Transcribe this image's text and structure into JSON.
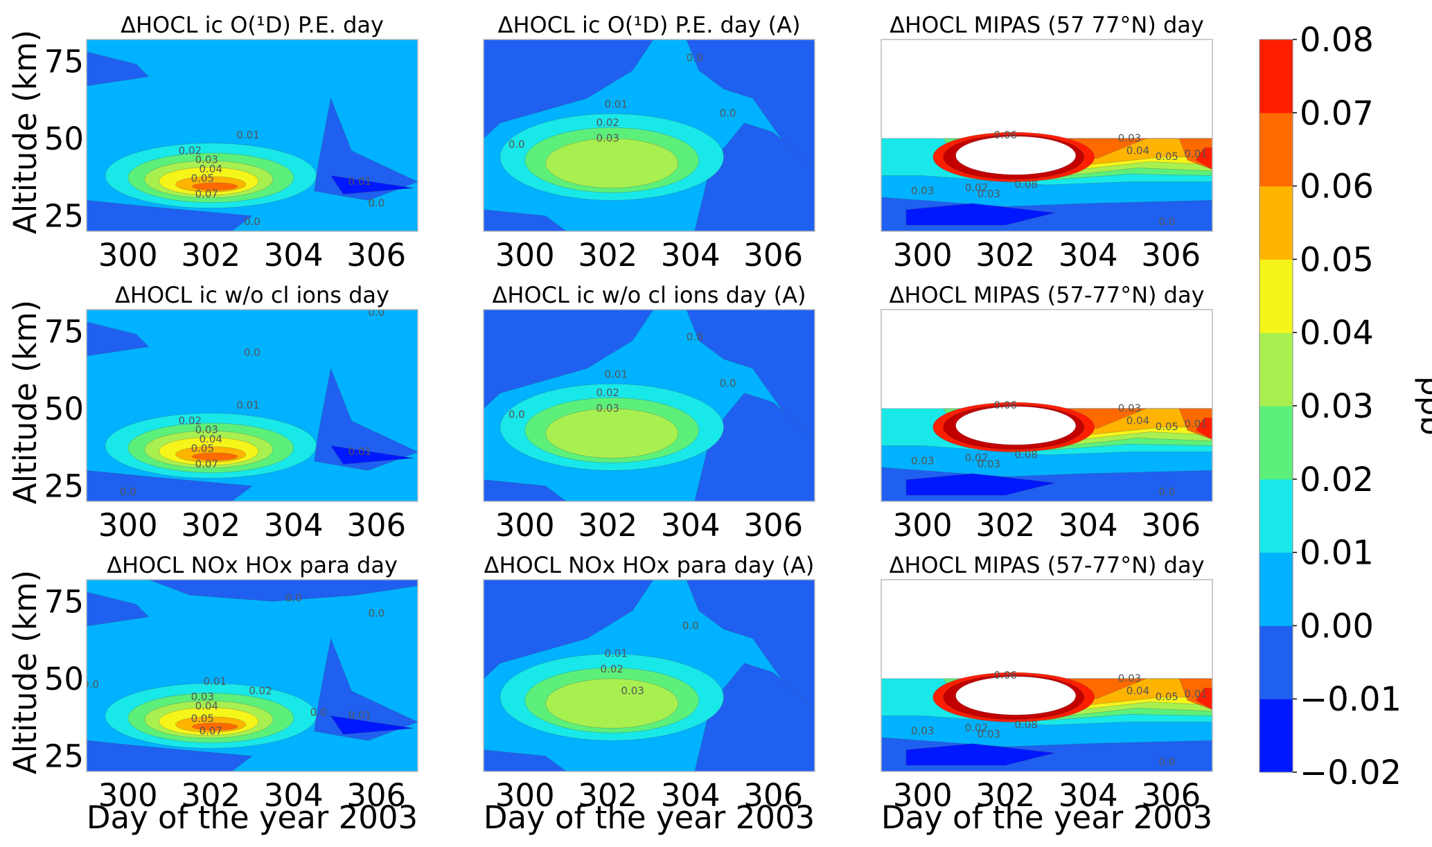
{
  "chart_data": {
    "type": "contour",
    "xlabel": "Day of the year 2003",
    "ylabel": "Altitude (km)",
    "xlim": [
      299,
      307
    ],
    "ylim": [
      20,
      82
    ],
    "xticks": [
      "300",
      "302",
      "304",
      "306"
    ],
    "yticks": [
      "25",
      "50",
      "75"
    ],
    "colorbar": {
      "label": "ppb",
      "levels": [
        "-0.02",
        "-0.01",
        "0.00",
        "0.01",
        "0.02",
        "0.03",
        "0.04",
        "0.05",
        "0.06",
        "0.07",
        "0.08"
      ],
      "colors": [
        "#0018ff",
        "#1f60f0",
        "#00b2ff",
        "#19e8e8",
        "#5cf07a",
        "#a8f050",
        "#f5f51a",
        "#ffb400",
        "#ff6a00",
        "#ff1e00"
      ]
    },
    "panels": [
      {
        "title": "ΔHOCL ic O(¹D) P.E. day",
        "kind": "model",
        "labels": [
          {
            "t": "0.01",
            "x": 302.9,
            "y": 50
          },
          {
            "t": "0.02",
            "x": 301.5,
            "y": 45
          },
          {
            "t": "0.03",
            "x": 301.9,
            "y": 42
          },
          {
            "t": "0.04",
            "x": 302.0,
            "y": 39
          },
          {
            "t": "0.05",
            "x": 301.8,
            "y": 36
          },
          {
            "t": "0.07",
            "x": 301.9,
            "y": 31
          },
          {
            "t": "0.01",
            "x": 305.6,
            "y": 35
          },
          {
            "t": "0.0",
            "x": 303.0,
            "y": 22
          },
          {
            "t": "0.0",
            "x": 306.0,
            "y": 28
          }
        ]
      },
      {
        "title": "ΔHOCL ic O(¹D) P.E. day (A)",
        "kind": "modelA",
        "labels": [
          {
            "t": "0.01",
            "x": 302.2,
            "y": 60
          },
          {
            "t": "0.02",
            "x": 302.0,
            "y": 54
          },
          {
            "t": "0.03",
            "x": 302.0,
            "y": 49
          },
          {
            "t": "0.0",
            "x": 299.8,
            "y": 47
          },
          {
            "t": "0.0",
            "x": 304.9,
            "y": 57
          },
          {
            "t": "0.0",
            "x": 304.1,
            "y": 75
          }
        ]
      },
      {
        "title": "ΔHOCL MIPAS (57 77°N) day",
        "kind": "mipas",
        "labels": [
          {
            "t": "0.06",
            "x": 302.0,
            "y": 50
          },
          {
            "t": "0.03",
            "x": 305.0,
            "y": 49
          },
          {
            "t": "0.04",
            "x": 305.2,
            "y": 45
          },
          {
            "t": "0.05",
            "x": 305.9,
            "y": 43
          },
          {
            "t": "0.01",
            "x": 306.6,
            "y": 44
          },
          {
            "t": "0.03",
            "x": 300.0,
            "y": 32
          },
          {
            "t": "0.02",
            "x": 301.3,
            "y": 33
          },
          {
            "t": "0.03",
            "x": 301.6,
            "y": 31
          },
          {
            "t": "0.08",
            "x": 302.5,
            "y": 34
          },
          {
            "t": "0.0",
            "x": 305.9,
            "y": 22
          }
        ]
      },
      {
        "title": "ΔHOCL ic w/o cl ions day",
        "kind": "model",
        "labels": [
          {
            "t": "0.01",
            "x": 302.9,
            "y": 50
          },
          {
            "t": "0.02",
            "x": 301.5,
            "y": 45
          },
          {
            "t": "0.03",
            "x": 301.9,
            "y": 42
          },
          {
            "t": "0.04",
            "x": 302.0,
            "y": 39
          },
          {
            "t": "0.05",
            "x": 301.8,
            "y": 36
          },
          {
            "t": "0.07",
            "x": 301.9,
            "y": 31
          },
          {
            "t": "0.01",
            "x": 305.6,
            "y": 35
          },
          {
            "t": "0.0",
            "x": 303.0,
            "y": 67
          },
          {
            "t": "0.0",
            "x": 306.0,
            "y": 80
          },
          {
            "t": "0.0",
            "x": 300.0,
            "y": 22
          }
        ]
      },
      {
        "title": "ΔHOCL ic w/o cl ions day (A)",
        "kind": "modelA",
        "labels": [
          {
            "t": "0.01",
            "x": 302.2,
            "y": 60
          },
          {
            "t": "0.02",
            "x": 302.0,
            "y": 54
          },
          {
            "t": "0.03",
            "x": 302.0,
            "y": 49
          },
          {
            "t": "0.0",
            "x": 299.8,
            "y": 47
          },
          {
            "t": "0.0",
            "x": 304.9,
            "y": 57
          },
          {
            "t": "0.0",
            "x": 304.1,
            "y": 72
          }
        ]
      },
      {
        "title": "ΔHOCL MIPAS (57-77°N) day",
        "kind": "mipas",
        "labels": [
          {
            "t": "0.06",
            "x": 302.0,
            "y": 50
          },
          {
            "t": "0.03",
            "x": 305.0,
            "y": 49
          },
          {
            "t": "0.04",
            "x": 305.2,
            "y": 45
          },
          {
            "t": "0.05",
            "x": 305.9,
            "y": 43
          },
          {
            "t": "0.01",
            "x": 306.6,
            "y": 44
          },
          {
            "t": "0.03",
            "x": 300.0,
            "y": 32
          },
          {
            "t": "0.02",
            "x": 301.3,
            "y": 33
          },
          {
            "t": "0.03",
            "x": 301.6,
            "y": 31
          },
          {
            "t": "0.08",
            "x": 302.5,
            "y": 34
          },
          {
            "t": "0.0",
            "x": 305.9,
            "y": 22
          }
        ]
      },
      {
        "title": "ΔHOCL NOx HOx para day",
        "kind": "model",
        "labels": [
          {
            "t": "0.01",
            "x": 302.1,
            "y": 48
          },
          {
            "t": "0.02",
            "x": 303.2,
            "y": 45
          },
          {
            "t": "0.03",
            "x": 301.8,
            "y": 43
          },
          {
            "t": "0.04",
            "x": 301.9,
            "y": 40
          },
          {
            "t": "0.05",
            "x": 301.8,
            "y": 36
          },
          {
            "t": "0.07",
            "x": 302.0,
            "y": 32
          },
          {
            "t": "0.0",
            "x": 304.0,
            "y": 75
          },
          {
            "t": "0.0",
            "x": 306.0,
            "y": 70
          },
          {
            "t": "0.0",
            "x": 304.6,
            "y": 38
          },
          {
            "t": "0.01",
            "x": 305.6,
            "y": 37
          },
          {
            "t": "0.0",
            "x": 299.1,
            "y": 47
          }
        ]
      },
      {
        "title": "ΔHOCL NOx HOx para day (A)",
        "kind": "modelA",
        "labels": [
          {
            "t": "0.01",
            "x": 302.2,
            "y": 57
          },
          {
            "t": "0.02",
            "x": 302.1,
            "y": 52
          },
          {
            "t": "0.03",
            "x": 302.6,
            "y": 45
          },
          {
            "t": "0.0",
            "x": 304.0,
            "y": 66
          }
        ]
      },
      {
        "title": "ΔHOCL MIPAS (57-77°N) day",
        "kind": "mipas",
        "labels": [
          {
            "t": "0.06",
            "x": 302.0,
            "y": 50
          },
          {
            "t": "0.03",
            "x": 305.0,
            "y": 49
          },
          {
            "t": "0.04",
            "x": 305.2,
            "y": 45
          },
          {
            "t": "0.05",
            "x": 305.9,
            "y": 43
          },
          {
            "t": "0.01",
            "x": 306.6,
            "y": 44
          },
          {
            "t": "0.03",
            "x": 300.0,
            "y": 32
          },
          {
            "t": "0.02",
            "x": 301.3,
            "y": 33
          },
          {
            "t": "0.03",
            "x": 301.6,
            "y": 31
          },
          {
            "t": "0.08",
            "x": 302.5,
            "y": 34
          },
          {
            "t": "0.0",
            "x": 305.9,
            "y": 22
          }
        ]
      }
    ]
  }
}
